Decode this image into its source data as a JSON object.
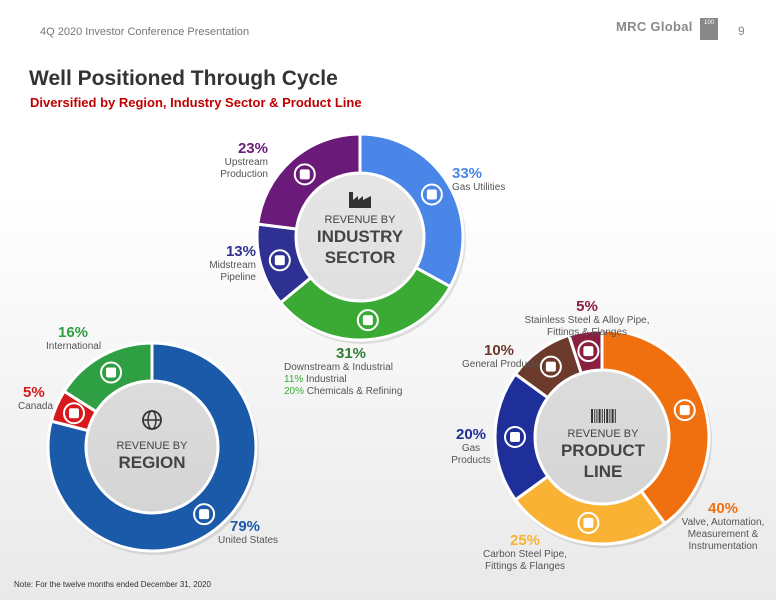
{
  "header": {
    "presentation": "4Q 2020 Investor Conference Presentation",
    "brand": "MRC Global",
    "brand_badge": "100",
    "page_number": "9"
  },
  "title": "Well Positioned Through Cycle",
  "subtitle": "Diversified by Region, Industry Sector & Product Line",
  "note": "Note: For the twelve months ended December 31, 2020",
  "chart_data": [
    {
      "type": "pie",
      "donut": true,
      "center_label": [
        "REVENUE BY",
        "INDUSTRY",
        "SECTOR"
      ],
      "slices": [
        {
          "label": "Gas Utilities",
          "value": 33,
          "pct_label": "33%",
          "color": "#4a86e8",
          "icon": "flame-icon"
        },
        {
          "label": "Downstream & Industrial",
          "value": 31,
          "pct_label": "31%",
          "color": "#3aaa35",
          "icon": "refinery-icon",
          "details": [
            {
              "pct": "11%",
              "text": "Industrial"
            },
            {
              "pct": "20%",
              "text": "Chemicals & Refining"
            }
          ]
        },
        {
          "label": "Midstream Pipeline",
          "value": 13,
          "pct_label": "13%",
          "color": "#2e3192",
          "icon": "pipeline-icon"
        },
        {
          "label": "Upstream Production",
          "value": 23,
          "pct_label": "23%",
          "color": "#6a1b7a",
          "icon": "oil-rig-icon"
        }
      ]
    },
    {
      "type": "pie",
      "donut": true,
      "center_label": [
        "REVENUE BY",
        "REGION"
      ],
      "slices": [
        {
          "label": "United States",
          "value": 79,
          "pct_label": "79%",
          "color": "#1a5aa8",
          "icon": "usa-map-icon"
        },
        {
          "label": "Canada",
          "value": 5,
          "pct_label": "5%",
          "color": "#d7191c",
          "icon": "maple-leaf-icon"
        },
        {
          "label": "International",
          "value": 16,
          "pct_label": "16%",
          "color": "#2ea043",
          "icon": "world-map-icon"
        }
      ]
    },
    {
      "type": "pie",
      "donut": true,
      "center_label": [
        "REVENUE BY",
        "PRODUCT",
        "LINE"
      ],
      "slices": [
        {
          "label": "Valve, Automation, Measurement & Instrumentation",
          "value": 40,
          "pct_label": "40%",
          "color": "#f07010",
          "icon": "valve-icon"
        },
        {
          "label": "Carbon Steel Pipe, Fittings & Flanges",
          "value": 25,
          "pct_label": "25%",
          "color": "#f9b233",
          "icon": "flange-icon"
        },
        {
          "label": "Gas Products",
          "value": 20,
          "pct_label": "20%",
          "color": "#1f2f99",
          "icon": "gas-meter-icon"
        },
        {
          "label": "General Products",
          "value": 10,
          "pct_label": "10%",
          "color": "#6b3a2a",
          "icon": "pipe-roll-icon"
        },
        {
          "label": "Stainless Steel & Alloy Pipe, Fittings & Flanges",
          "value": 5,
          "pct_label": "5%",
          "color": "#8a1f3f",
          "icon": "fitting-icon"
        }
      ]
    }
  ],
  "labels": {
    "gas_utilities": {
      "pct": "33%",
      "text": "Gas Utilities",
      "color": "#4a86e8"
    },
    "downstream": {
      "pct": "31%",
      "text": "Downstream & Industrial",
      "color": "#2e7d32",
      "d1_pct": "11%",
      "d1_text": " Industrial",
      "d2_pct": "20%",
      "d2_text": " Chemicals & Refining",
      "detail_color": "#3aaa35"
    },
    "midstream": {
      "pct": "13%",
      "line1": "Midstream",
      "line2": "Pipeline",
      "color": "#2e3192"
    },
    "upstream": {
      "pct": "23%",
      "line1": "Upstream",
      "line2": "Production",
      "color": "#6a1b7a"
    },
    "international": {
      "pct": "16%",
      "text": "International",
      "color": "#2ea043"
    },
    "canada": {
      "pct": "5%",
      "text": "Canada",
      "color": "#d7191c"
    },
    "united_states": {
      "pct": "79%",
      "text": "United States",
      "color": "#1a5aa8"
    },
    "stainless": {
      "pct": "5%",
      "line1": "Stainless Steel & Alloy Pipe,",
      "line2": "Fittings & Flanges",
      "color": "#8a1f3f"
    },
    "general": {
      "pct": "10%",
      "text": "General Products",
      "color": "#6b3a2a"
    },
    "gas_products": {
      "pct": "20%",
      "line1": "Gas",
      "line2": "Products",
      "color": "#1f2f99"
    },
    "carbon": {
      "pct": "25%",
      "line1": "Carbon Steel Pipe,",
      "line2": "Fittings & Flanges",
      "color": "#f9b233"
    },
    "valve": {
      "pct": "40%",
      "line1": "Valve, Automation,",
      "line2": "Measurement &",
      "line3": "Instrumentation",
      "color": "#f07010"
    }
  }
}
